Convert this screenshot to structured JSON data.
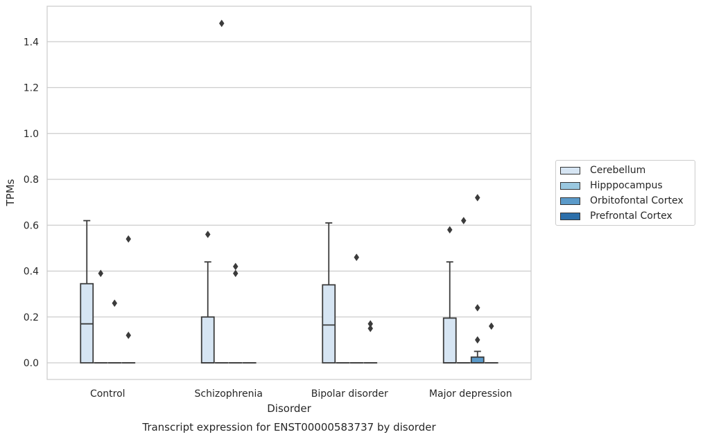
{
  "chart_data": {
    "type": "box",
    "title": "",
    "caption": "Transcript expression for ENST00000583737 by disorder",
    "xlabel": "Disorder",
    "ylabel": "TPMs",
    "ylim": [
      -0.07,
      1.55
    ],
    "yticks": [
      0.0,
      0.2,
      0.4,
      0.6,
      0.8,
      1.0,
      1.2,
      1.4
    ],
    "ytick_labels": [
      "0.0",
      "0.2",
      "0.4",
      "0.6",
      "0.8",
      "1.0",
      "1.2",
      "1.4"
    ],
    "grid": true,
    "legend_position": "right",
    "categories": [
      "Control",
      "Schizophrenia",
      "Bipolar disorder",
      "Major depression"
    ],
    "series": [
      {
        "name": "Cerebellum",
        "color": "#d6e5f3",
        "boxes": [
          {
            "q1": 0.0,
            "median": 0.17,
            "q3": 0.345,
            "whisker_low": 0.0,
            "whisker_high": 0.62,
            "outliers": []
          },
          {
            "q1": 0.0,
            "median": 0.0,
            "q3": 0.2,
            "whisker_low": 0.0,
            "whisker_high": 0.44,
            "outliers": [
              0.56
            ]
          },
          {
            "q1": 0.0,
            "median": 0.165,
            "q3": 0.34,
            "whisker_low": 0.0,
            "whisker_high": 0.61,
            "outliers": []
          },
          {
            "q1": 0.0,
            "median": 0.0,
            "q3": 0.195,
            "whisker_low": 0.0,
            "whisker_high": 0.44,
            "outliers": [
              0.58
            ]
          }
        ]
      },
      {
        "name": "Hipppocampus",
        "color": "#9ac8e0",
        "boxes": [
          {
            "q1": 0.0,
            "median": 0.0,
            "q3": 0.0,
            "whisker_low": 0.0,
            "whisker_high": 0.0,
            "outliers": [
              0.39
            ]
          },
          {
            "q1": 0.0,
            "median": 0.0,
            "q3": 0.0,
            "whisker_low": 0.0,
            "whisker_high": 0.0,
            "outliers": [
              1.48
            ]
          },
          {
            "q1": 0.0,
            "median": 0.0,
            "q3": 0.0,
            "whisker_low": 0.0,
            "whisker_high": 0.0,
            "outliers": []
          },
          {
            "q1": 0.0,
            "median": 0.0,
            "q3": 0.0,
            "whisker_low": 0.0,
            "whisker_high": 0.0,
            "outliers": [
              0.62
            ]
          }
        ]
      },
      {
        "name": "Orbitofontal Cortex",
        "color": "#5b9ac9",
        "boxes": [
          {
            "q1": 0.0,
            "median": 0.0,
            "q3": 0.0,
            "whisker_low": 0.0,
            "whisker_high": 0.0,
            "outliers": [
              0.26
            ]
          },
          {
            "q1": 0.0,
            "median": 0.0,
            "q3": 0.0,
            "whisker_low": 0.0,
            "whisker_high": 0.0,
            "outliers": [
              0.42,
              0.39
            ]
          },
          {
            "q1": 0.0,
            "median": 0.0,
            "q3": 0.0,
            "whisker_low": 0.0,
            "whisker_high": 0.0,
            "outliers": [
              0.46
            ]
          },
          {
            "q1": 0.0,
            "median": 0.0,
            "q3": 0.025,
            "whisker_low": 0.0,
            "whisker_high": 0.05,
            "outliers": [
              0.72,
              0.24,
              0.1
            ]
          }
        ]
      },
      {
        "name": "Prefrontal Cortex",
        "color": "#2c6faa",
        "boxes": [
          {
            "q1": 0.0,
            "median": 0.0,
            "q3": 0.0,
            "whisker_low": 0.0,
            "whisker_high": 0.0,
            "outliers": [
              0.54,
              0.12
            ]
          },
          {
            "q1": 0.0,
            "median": 0.0,
            "q3": 0.0,
            "whisker_low": 0.0,
            "whisker_high": 0.0,
            "outliers": []
          },
          {
            "q1": 0.0,
            "median": 0.0,
            "q3": 0.0,
            "whisker_low": 0.0,
            "whisker_high": 0.0,
            "outliers": [
              0.17,
              0.15
            ]
          },
          {
            "q1": 0.0,
            "median": 0.0,
            "q3": 0.0,
            "whisker_low": 0.0,
            "whisker_high": 0.0,
            "outliers": [
              0.16
            ]
          }
        ]
      }
    ]
  }
}
